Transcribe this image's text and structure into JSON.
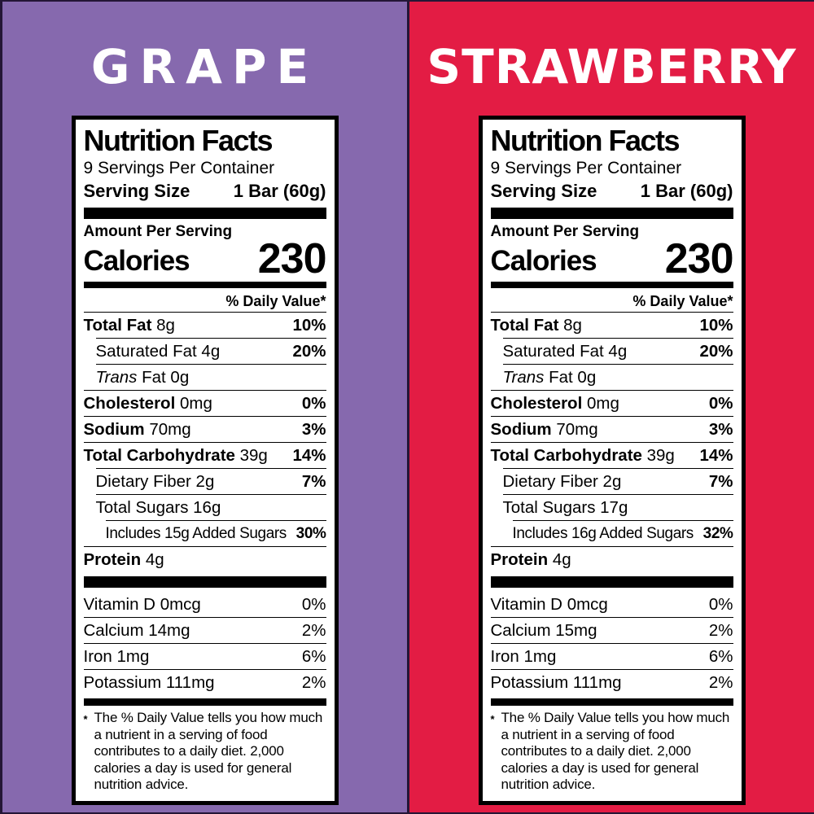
{
  "panels": [
    {
      "flavor": "GRAPE",
      "bg_color": "#8669ae",
      "label": {
        "title": "Nutrition Facts",
        "servings": "9 Servings Per Container",
        "serving_size_label": "Serving Size",
        "serving_size_value": "1 Bar (60g)",
        "amount_per_serving": "Amount Per Serving",
        "calories_label": "Calories",
        "calories_value": "230",
        "daily_value_header": "% Daily Value*",
        "rows": [
          {
            "name": "Total Fat",
            "amount": "8g",
            "dv": "10%"
          },
          {
            "name": "Saturated Fat",
            "amount": "4g",
            "dv": "20%"
          },
          {
            "name_italic": "Trans",
            "name": "Fat",
            "amount": "0g",
            "dv": ""
          },
          {
            "name": "Cholesterol",
            "amount": "0mg",
            "dv": "0%"
          },
          {
            "name": "Sodium",
            "amount": "70mg",
            "dv": "3%"
          },
          {
            "name": "Total Carbohydrate",
            "amount": "39g",
            "dv": "14%"
          },
          {
            "name": "Dietary Fiber",
            "amount": "2g",
            "dv": "7%"
          },
          {
            "name": "Total Sugars",
            "amount": "16g",
            "dv": ""
          },
          {
            "name": "Includes 15g Added Sugars",
            "amount": "",
            "dv": "30%"
          },
          {
            "name": "Protein",
            "amount": "4g",
            "dv": ""
          }
        ],
        "micronutrients": [
          {
            "name": "Vitamin D",
            "amount": "0mcg",
            "dv": "0%"
          },
          {
            "name": "Calcium",
            "amount": "14mg",
            "dv": "2%"
          },
          {
            "name": "Iron",
            "amount": "1mg",
            "dv": "6%"
          },
          {
            "name": "Potassium",
            "amount": "111mg",
            "dv": "2%"
          }
        ],
        "footnote_marker": "*",
        "footnote": "The % Daily Value tells you how much a nutrient in a serving of food contributes to a daily diet. 2,000 calories a day is used for general nutrition advice."
      }
    },
    {
      "flavor": "STRAWBERRY",
      "bg_color": "#e31c44",
      "label": {
        "title": "Nutrition Facts",
        "servings": "9 Servings Per Container",
        "serving_size_label": "Serving Size",
        "serving_size_value": "1 Bar (60g)",
        "amount_per_serving": "Amount Per Serving",
        "calories_label": "Calories",
        "calories_value": "230",
        "daily_value_header": "% Daily Value*",
        "rows": [
          {
            "name": "Total Fat",
            "amount": "8g",
            "dv": "10%"
          },
          {
            "name": "Saturated Fat",
            "amount": "4g",
            "dv": "20%"
          },
          {
            "name_italic": "Trans",
            "name": "Fat",
            "amount": "0g",
            "dv": ""
          },
          {
            "name": "Cholesterol",
            "amount": "0mg",
            "dv": "0%"
          },
          {
            "name": "Sodium",
            "amount": "70mg",
            "dv": "3%"
          },
          {
            "name": "Total Carbohydrate",
            "amount": "39g",
            "dv": "14%"
          },
          {
            "name": "Dietary Fiber",
            "amount": "2g",
            "dv": "7%"
          },
          {
            "name": "Total Sugars",
            "amount": "17g",
            "dv": ""
          },
          {
            "name": "Includes 16g Added Sugars",
            "amount": "",
            "dv": "32%"
          },
          {
            "name": "Protein",
            "amount": "4g",
            "dv": ""
          }
        ],
        "micronutrients": [
          {
            "name": "Vitamin D",
            "amount": "0mcg",
            "dv": "0%"
          },
          {
            "name": "Calcium",
            "amount": "15mg",
            "dv": "2%"
          },
          {
            "name": "Iron",
            "amount": "1mg",
            "dv": "6%"
          },
          {
            "name": "Potassium",
            "amount": "111mg",
            "dv": "2%"
          }
        ],
        "footnote_marker": "*",
        "footnote": "The % Daily Value tells you how much a nutrient in a serving of food contributes to a daily diet. 2,000 calories a day is used for general nutrition advice."
      }
    }
  ]
}
